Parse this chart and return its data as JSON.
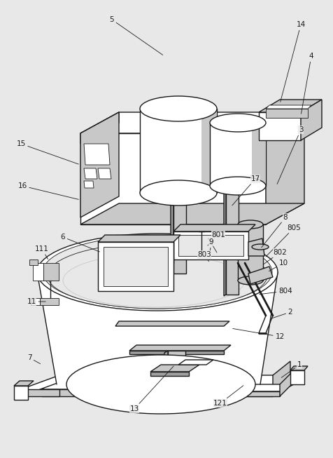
{
  "fig_width": 4.77,
  "fig_height": 6.53,
  "dpi": 100,
  "bg_color": "#e8e8e8",
  "line_color": "#1a1a1a",
  "white": "#ffffff",
  "lgray": "#c8c8c8",
  "mgray": "#a0a0a0",
  "dgray": "#707070",
  "label_fs": 7.5,
  "lw": 1.0,
  "tlw": 0.6
}
